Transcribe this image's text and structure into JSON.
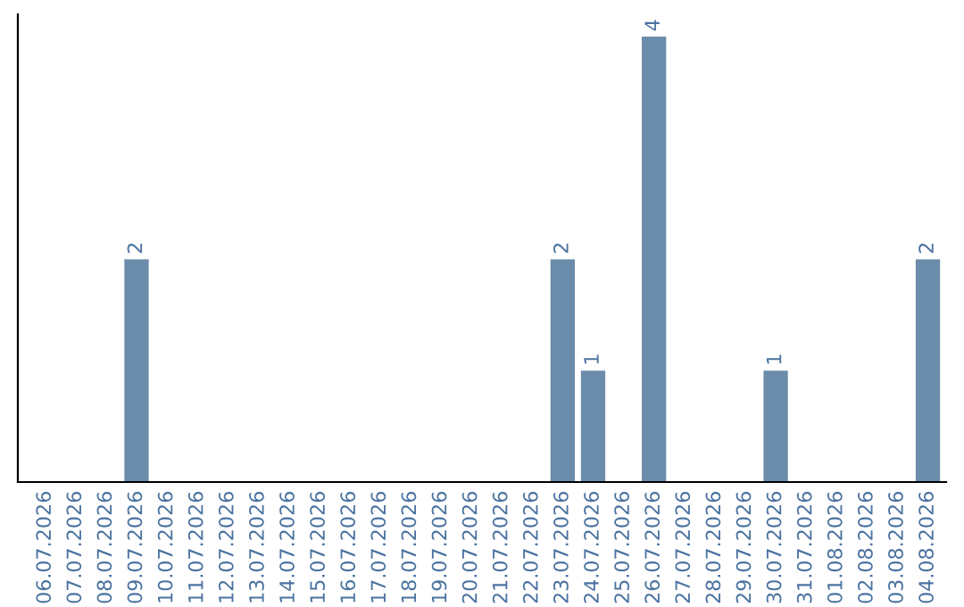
{
  "chart_data": {
    "type": "bar",
    "categories": [
      "06.07.2026",
      "07.07.2026",
      "08.07.2026",
      "09.07.2026",
      "10.07.2026",
      "11.07.2026",
      "12.07.2026",
      "13.07.2026",
      "14.07.2026",
      "15.07.2026",
      "16.07.2026",
      "17.07.2026",
      "18.07.2026",
      "19.07.2026",
      "20.07.2026",
      "21.07.2026",
      "22.07.2026",
      "23.07.2026",
      "24.07.2026",
      "25.07.2026",
      "26.07.2026",
      "27.07.2026",
      "28.07.2026",
      "29.07.2026",
      "30.07.2026",
      "31.07.2026",
      "01.08.2026",
      "02.08.2026",
      "03.08.2026",
      "04.08.2026"
    ],
    "values": [
      0,
      0,
      0,
      2,
      0,
      0,
      0,
      0,
      0,
      0,
      0,
      0,
      0,
      0,
      0,
      0,
      0,
      2,
      1,
      0,
      4,
      0,
      0,
      0,
      1,
      0,
      0,
      0,
      0,
      2
    ],
    "value_labels": [
      null,
      null,
      null,
      "2",
      null,
      null,
      null,
      null,
      null,
      null,
      null,
      null,
      null,
      null,
      null,
      null,
      null,
      "2",
      "1",
      null,
      "4",
      null,
      null,
      null,
      "1",
      null,
      null,
      null,
      null,
      "2"
    ],
    "color": "#6b8cab",
    "tick_labels": "x",
    "grid": false,
    "legend": false
  }
}
